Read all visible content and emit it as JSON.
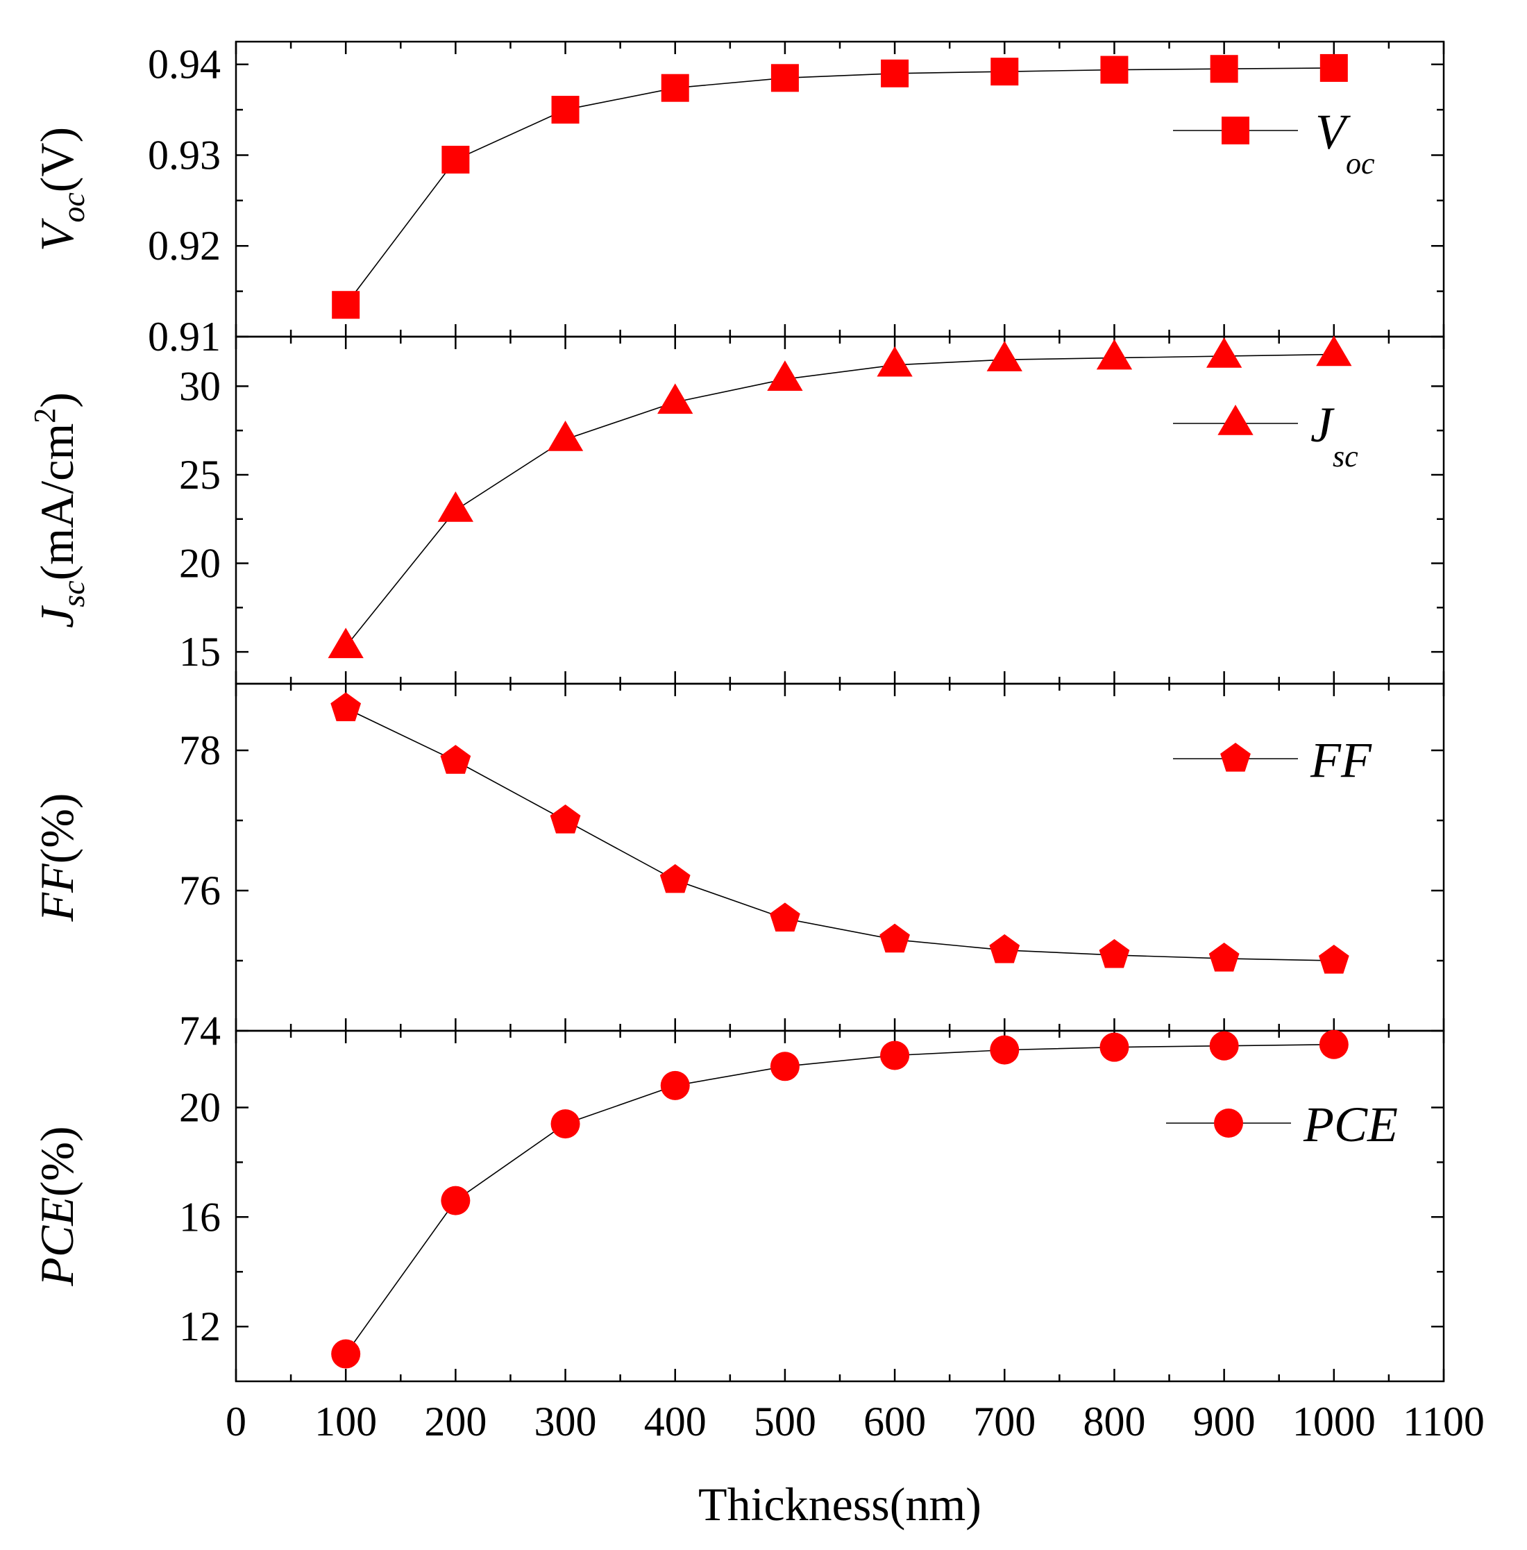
{
  "chart_data": [
    {
      "type": "line",
      "id": "voc",
      "marker": "square",
      "x": [
        100,
        200,
        300,
        400,
        500,
        600,
        700,
        800,
        900,
        1000
      ],
      "values": [
        0.9135,
        0.9295,
        0.935,
        0.9374,
        0.9385,
        0.939,
        0.9392,
        0.9394,
        0.9395,
        0.9396
      ],
      "ylim": [
        0.91,
        0.9425
      ],
      "yticks": [
        "0.91",
        "0.92",
        "0.93",
        "0.94"
      ],
      "ylabel_main": "V",
      "ylabel_sub": "oc",
      "ylabel_unit": "(V)",
      "legend_main": "V",
      "legend_sub": "oc",
      "color": "#ff0000"
    },
    {
      "type": "line",
      "id": "jsc",
      "marker": "triangle",
      "x": [
        100,
        200,
        300,
        400,
        500,
        600,
        700,
        800,
        900,
        1000
      ],
      "values": [
        15.3,
        23.0,
        27.0,
        29.1,
        30.4,
        31.2,
        31.5,
        31.6,
        31.7,
        31.8
      ],
      "ylim": [
        13.2,
        32.8
      ],
      "yticks": [
        "15",
        "20",
        "25",
        "30"
      ],
      "ylabel_main": "J",
      "ylabel_sub": "sc",
      "ylabel_unit": "(mA/cm",
      "ylabel_sup": "2",
      "ylabel_close": ")",
      "legend_main": "J",
      "legend_sub": "sc",
      "color": "#ff0000"
    },
    {
      "type": "line",
      "id": "ff",
      "marker": "pentagon",
      "x": [
        100,
        200,
        300,
        400,
        500,
        600,
        700,
        800,
        900,
        1000
      ],
      "values": [
        78.6,
        77.85,
        77.0,
        76.15,
        75.6,
        75.3,
        75.15,
        75.08,
        75.03,
        75.0
      ],
      "ylim": [
        74.0,
        78.95
      ],
      "yticks": [
        "74",
        "76",
        "78"
      ],
      "ylabel_main": "FF",
      "ylabel_unit": "(%)",
      "legend_main": "FF",
      "color": "#ff0000"
    },
    {
      "type": "line",
      "id": "pce",
      "marker": "circle",
      "x": [
        100,
        200,
        300,
        400,
        500,
        600,
        700,
        800,
        900,
        1000
      ],
      "values": [
        11.0,
        16.6,
        19.4,
        20.8,
        21.5,
        21.9,
        22.1,
        22.2,
        22.25,
        22.3
      ],
      "ylim": [
        10.0,
        22.8
      ],
      "yticks": [
        "12",
        "16",
        "20"
      ],
      "ylabel_main": "PCE",
      "ylabel_unit": "(%)",
      "legend_main": "PCE",
      "color": "#ff0000"
    }
  ],
  "x_axis": {
    "label": "Thickness(nm)",
    "xlim": [
      0,
      1100
    ],
    "ticks": [
      "0",
      "100",
      "200",
      "300",
      "400",
      "500",
      "600",
      "700",
      "800",
      "900",
      "1000",
      "1100"
    ]
  }
}
